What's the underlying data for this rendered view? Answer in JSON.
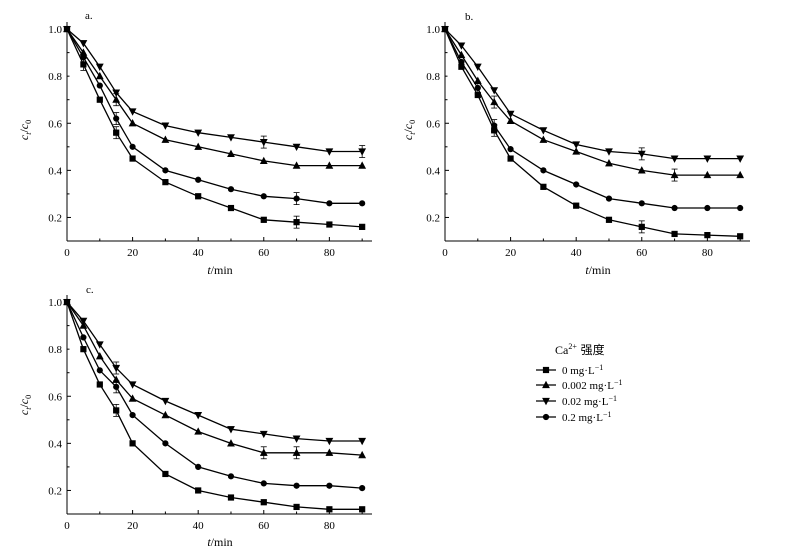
{
  "legend": {
    "title_base": "Ca",
    "title_sup": "2+",
    "title_suffix": " 强度",
    "entries": [
      {
        "marker": "square",
        "label": "0 mg·L"
      },
      {
        "marker": "triangle-up",
        "label": "0.002 mg·L"
      },
      {
        "marker": "triangle-down",
        "label": "0.02 mg·L"
      },
      {
        "marker": "circle",
        "label": "0.2 mg·L"
      }
    ],
    "unit_sup": "−1"
  },
  "chart_data": [
    {
      "type": "line",
      "panel_label": "a.",
      "ylabel_main": "c",
      "ylabel_sub1": "t",
      "ylabel_sep": "/",
      "ylabel_sub2": "0",
      "xlabel_var": "t",
      "xlabel_unit": "/min",
      "xlim": [
        0,
        93
      ],
      "ylim": [
        0.1,
        1.03
      ],
      "xticks": [
        0,
        20,
        40,
        60,
        80
      ],
      "yticks": [
        0.2,
        0.4,
        0.6,
        0.8,
        1.0
      ],
      "ytick_labels": [
        "0.2",
        "0.4",
        "0.6",
        "0.8",
        "1.0"
      ],
      "x": [
        0,
        5,
        10,
        15,
        20,
        30,
        40,
        50,
        60,
        70,
        80,
        90
      ],
      "series": [
        {
          "name": "0 mg·L−1",
          "marker": "square",
          "values": [
            1.0,
            0.85,
            0.7,
            0.56,
            0.45,
            0.35,
            0.29,
            0.24,
            0.19,
            0.18,
            0.17,
            0.16
          ],
          "err_index": [
            1,
            3,
            9
          ]
        },
        {
          "name": "0.002 mg·L−1",
          "marker": "triangle-up",
          "values": [
            1.0,
            0.9,
            0.8,
            0.7,
            0.6,
            0.53,
            0.5,
            0.47,
            0.44,
            0.42,
            0.42,
            0.42
          ],
          "err_index": [
            3
          ]
        },
        {
          "name": "0.02 mg·L−1",
          "marker": "triangle-down",
          "values": [
            1.0,
            0.94,
            0.84,
            0.73,
            0.65,
            0.59,
            0.56,
            0.54,
            0.52,
            0.5,
            0.48,
            0.48
          ],
          "err_index": [
            8,
            11
          ]
        },
        {
          "name": "0.2 mg·L−1",
          "marker": "circle",
          "values": [
            1.0,
            0.88,
            0.76,
            0.62,
            0.5,
            0.4,
            0.36,
            0.32,
            0.29,
            0.28,
            0.26,
            0.26
          ],
          "err_index": [
            3,
            9
          ]
        }
      ]
    },
    {
      "type": "line",
      "panel_label": "b.",
      "ylabel_main": "c",
      "ylabel_sub1": "t",
      "ylabel_sep": "/",
      "ylabel_sub2": "0",
      "xlabel_var": "t",
      "xlabel_unit": "/min",
      "xlim": [
        0,
        93
      ],
      "ylim": [
        0.1,
        1.03
      ],
      "xticks": [
        0,
        20,
        40,
        60,
        80
      ],
      "yticks": [
        0.2,
        0.4,
        0.6,
        0.8,
        1.0
      ],
      "ytick_labels": [
        "0.2",
        "0.4",
        "0.6",
        "0.8",
        "1.0"
      ],
      "x": [
        0,
        5,
        10,
        15,
        20,
        30,
        40,
        50,
        60,
        70,
        80,
        90
      ],
      "series": [
        {
          "name": "0 mg·L−1",
          "marker": "square",
          "values": [
            1.0,
            0.84,
            0.72,
            0.57,
            0.45,
            0.33,
            0.25,
            0.19,
            0.16,
            0.13,
            0.125,
            0.12
          ],
          "err_index": [
            3,
            8
          ]
        },
        {
          "name": "0.002 mg·L−1",
          "marker": "triangle-up",
          "values": [
            1.0,
            0.89,
            0.78,
            0.69,
            0.61,
            0.53,
            0.48,
            0.43,
            0.4,
            0.38,
            0.38,
            0.38
          ],
          "err_index": [
            3,
            9
          ]
        },
        {
          "name": "0.02 mg·L−1",
          "marker": "triangle-down",
          "values": [
            1.0,
            0.93,
            0.84,
            0.74,
            0.64,
            0.57,
            0.51,
            0.48,
            0.47,
            0.45,
            0.45,
            0.45
          ],
          "err_index": [
            8
          ]
        },
        {
          "name": "0.2 mg·L−1",
          "marker": "circle",
          "values": [
            1.0,
            0.86,
            0.75,
            0.59,
            0.49,
            0.4,
            0.34,
            0.28,
            0.26,
            0.24,
            0.24,
            0.24
          ],
          "err_index": [
            2,
            3
          ]
        }
      ]
    },
    {
      "type": "line",
      "panel_label": "c.",
      "ylabel_main": "c",
      "ylabel_sub1": "t",
      "ylabel_sep": "/",
      "ylabel_sub2": "0",
      "xlabel_var": "t",
      "xlabel_unit": "/min",
      "xlim": [
        0,
        93
      ],
      "ylim": [
        0.1,
        1.03
      ],
      "xticks": [
        0,
        20,
        40,
        60,
        80
      ],
      "yticks": [
        0.2,
        0.4,
        0.6,
        0.8,
        1.0
      ],
      "ytick_labels": [
        "0.2",
        "0.4",
        "0.6",
        "0.8",
        "1.0"
      ],
      "x": [
        0,
        5,
        10,
        15,
        20,
        30,
        40,
        50,
        60,
        70,
        80,
        90
      ],
      "series": [
        {
          "name": "0 mg·L−1",
          "marker": "square",
          "values": [
            1.0,
            0.8,
            0.65,
            0.54,
            0.4,
            0.27,
            0.2,
            0.17,
            0.15,
            0.13,
            0.12,
            0.12
          ],
          "err_index": [
            3
          ]
        },
        {
          "name": "0.002 mg·L−1",
          "marker": "triangle-up",
          "values": [
            1.0,
            0.9,
            0.77,
            0.67,
            0.59,
            0.52,
            0.45,
            0.4,
            0.36,
            0.36,
            0.36,
            0.35
          ],
          "err_index": [
            8,
            9
          ]
        },
        {
          "name": "0.02 mg·L−1",
          "marker": "triangle-down",
          "values": [
            1.0,
            0.92,
            0.82,
            0.72,
            0.65,
            0.58,
            0.52,
            0.46,
            0.44,
            0.42,
            0.41,
            0.41
          ],
          "err_index": [
            3
          ]
        },
        {
          "name": "0.2 mg·L−1",
          "marker": "circle",
          "values": [
            1.0,
            0.85,
            0.71,
            0.64,
            0.52,
            0.4,
            0.3,
            0.26,
            0.23,
            0.22,
            0.22,
            0.21
          ],
          "err_index": [
            3
          ]
        }
      ]
    }
  ]
}
